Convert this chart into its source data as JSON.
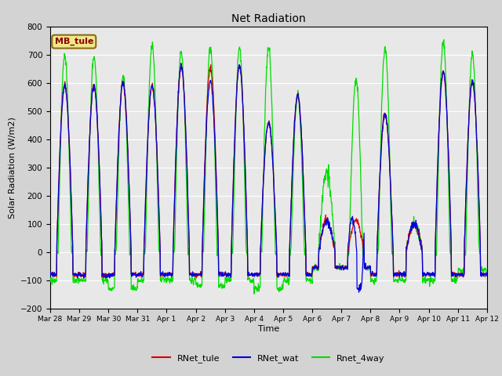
{
  "title": "Net Radiation",
  "xlabel": "Time",
  "ylabel": "Solar Radiation (W/m2)",
  "ylim": [
    -200,
    800
  ],
  "yticks": [
    -200,
    -100,
    0,
    100,
    200,
    300,
    400,
    500,
    600,
    700,
    800
  ],
  "plot_bg_color": "#e8e8e8",
  "fig_bg_color": "#d3d3d3",
  "line_colors": {
    "RNet_tule": "#dd0000",
    "RNet_wat": "#0000dd",
    "Rnet_4way": "#00dd00"
  },
  "legend_label": "MB_tule",
  "legend_label_color": "#8B0000",
  "legend_box_facecolor": "#f0e68c",
  "legend_box_edgecolor": "#8B6914",
  "x_tick_labels": [
    "Mar 28",
    "Mar 29",
    "Mar 30",
    "Mar 31",
    "Apr 1",
    "Apr 2",
    "Apr 3",
    "Apr 4",
    "Apr 5",
    "Apr 6",
    "Apr 7",
    "Apr 8",
    "Apr 9",
    "Apr 10",
    "Apr 11",
    "Apr 12"
  ],
  "n_days": 15,
  "pts_per_day": 96,
  "night_val": -80,
  "day_start": 0.22,
  "day_end": 0.78
}
